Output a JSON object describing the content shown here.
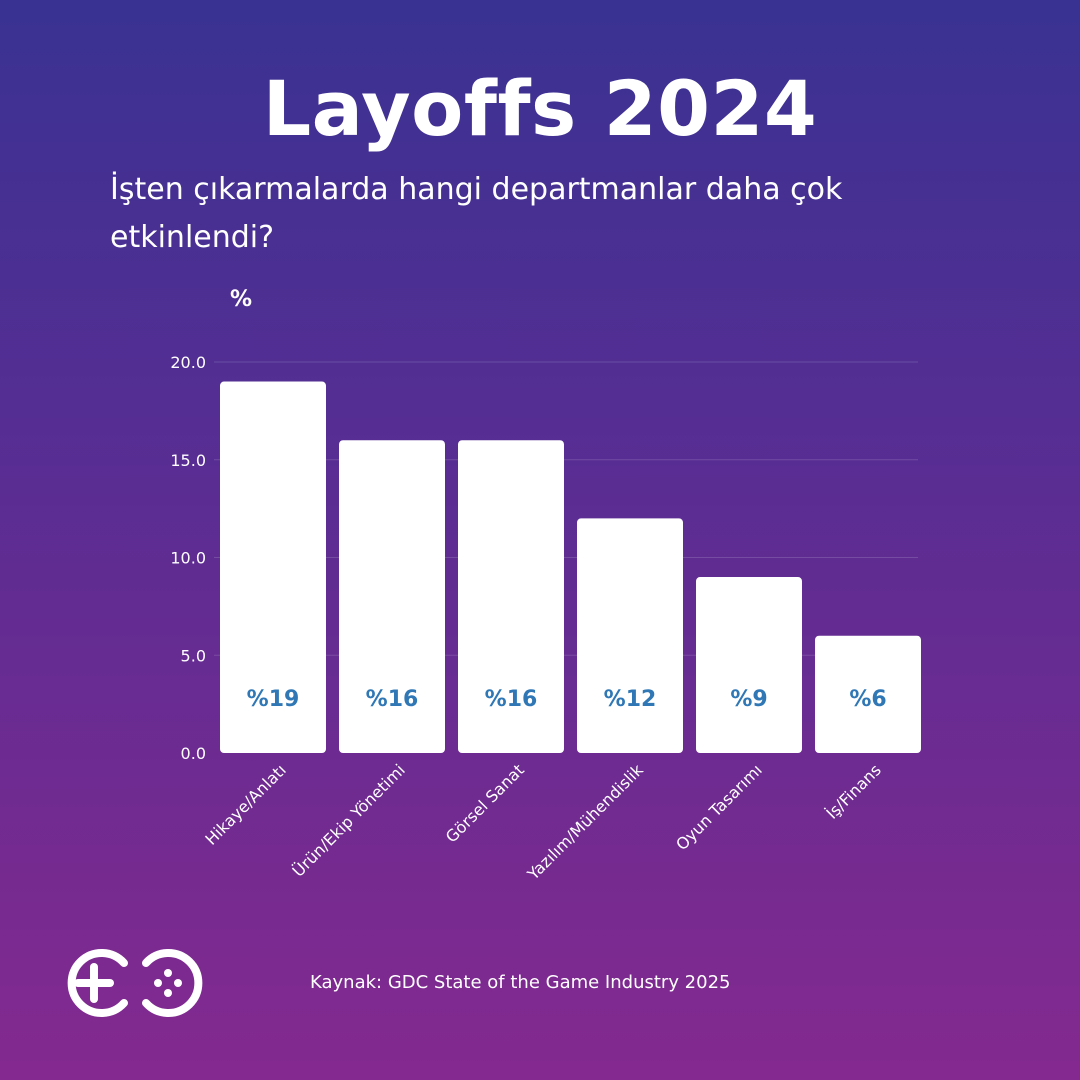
{
  "title": "Layoffs 2024",
  "subtitle": "İşten çıkarmalarda hangi departmanlar daha çok etkinlendi?",
  "source": "Kaynak: GDC State of the Game Industry 2025",
  "logo": {
    "icon": "go-gamepad-logo"
  },
  "colors": {
    "bar": "#ffffff",
    "data_label": "#2f77b5",
    "bg_top": "#393292",
    "bg_bottom": "#84298f"
  },
  "chart_data": {
    "type": "bar",
    "ylabel": "%",
    "ylim": [
      0,
      20
    ],
    "yticks": [
      "0.0",
      "5.0",
      "10.0",
      "15.0",
      "20.0"
    ],
    "ytick_values": [
      0,
      5,
      10,
      15,
      20
    ],
    "categories": [
      "Hikaye/Anlatı",
      "Ürün/Ekip Yönetimi",
      "Görsel Sanat",
      "Yazılım/Mühendislik",
      "Oyun Tasarımı",
      "İş/Finans"
    ],
    "values": [
      19,
      16,
      16,
      12,
      9,
      6
    ],
    "data_labels": [
      "%19",
      "%16",
      "%16",
      "%12",
      "%9",
      "%6"
    ],
    "grid": true
  }
}
